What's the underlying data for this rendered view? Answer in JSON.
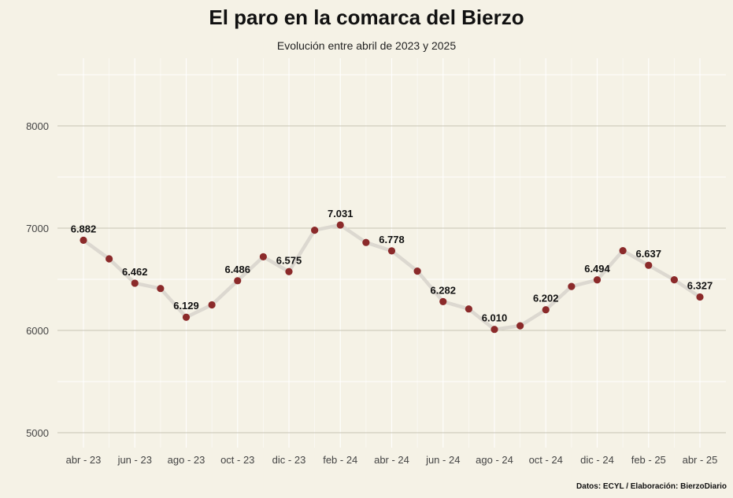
{
  "chart_data": {
    "type": "line",
    "title": "El paro en la comarca del Bierzo",
    "subtitle": "Evolución entre abril de 2023 y 2025",
    "caption": "Datos: ECYL / Elaboración: BierzoDiario",
    "ylim": [
      4850,
      8600
    ],
    "yticks": [
      5000,
      6000,
      7000,
      8000
    ],
    "x_tick_labels": [
      "abr - 23",
      "jun - 23",
      "ago - 23",
      "oct - 23",
      "dic - 23",
      "feb - 24",
      "abr - 24",
      "jun - 24",
      "ago - 24",
      "oct - 24",
      "dic - 24",
      "feb - 25",
      "abr - 25"
    ],
    "x": [
      "2023-04",
      "2023-05",
      "2023-06",
      "2023-07",
      "2023-08",
      "2023-09",
      "2023-10",
      "2023-11",
      "2023-12",
      "2024-01",
      "2024-02",
      "2024-03",
      "2024-04",
      "2024-05",
      "2024-06",
      "2024-07",
      "2024-08",
      "2024-09",
      "2024-10",
      "2024-11",
      "2024-12",
      "2025-01",
      "2025-02",
      "2025-03",
      "2025-04"
    ],
    "values": [
      6882,
      6700,
      6462,
      6410,
      6129,
      6250,
      6486,
      6720,
      6575,
      6980,
      7031,
      6860,
      6778,
      6580,
      6282,
      6210,
      6010,
      6045,
      6202,
      6430,
      6494,
      6780,
      6637,
      6495,
      6327
    ],
    "data_labels": [
      {
        "index": 0,
        "text": "6.882"
      },
      {
        "index": 2,
        "text": "6.462"
      },
      {
        "index": 4,
        "text": "6.129"
      },
      {
        "index": 6,
        "text": "6.486"
      },
      {
        "index": 8,
        "text": "6.575"
      },
      {
        "index": 10,
        "text": "7.031"
      },
      {
        "index": 12,
        "text": "6.778"
      },
      {
        "index": 14,
        "text": "6.282"
      },
      {
        "index": 16,
        "text": "6.010"
      },
      {
        "index": 18,
        "text": "6.202"
      },
      {
        "index": 20,
        "text": "6.494"
      },
      {
        "index": 22,
        "text": "6.637"
      },
      {
        "index": 24,
        "text": "6.327"
      }
    ],
    "colors": {
      "background": "#f5f2e6",
      "line": "#dcd8d0",
      "point": "#8b2a2a",
      "grid_major": "#c8c4b4",
      "grid_minor": "#ffffff"
    },
    "grid": true,
    "legend": "none"
  }
}
